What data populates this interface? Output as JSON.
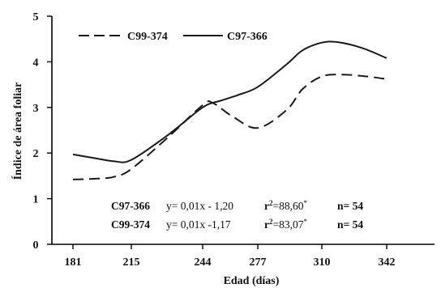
{
  "chart_data": {
    "type": "line",
    "x": [
      181,
      215,
      244,
      277,
      310,
      342
    ],
    "x_tick_labels": [
      "181",
      "215",
      "244",
      "277",
      "310",
      "342"
    ],
    "ylim": [
      0,
      5
    ],
    "y_ticks": [
      0,
      1,
      2,
      3,
      4,
      5
    ],
    "xlabel": "Edad (días)",
    "ylabel": "Índice de área foliar",
    "grid": false,
    "legend_position": "top-left",
    "series": [
      {
        "name": "C99-374",
        "style": "dashed",
        "color": "#1a1a1a",
        "points": [
          [
            181,
            1.42
          ],
          [
            195,
            1.44
          ],
          [
            205,
            1.48
          ],
          [
            215,
            1.65
          ],
          [
            230,
            2.35
          ],
          [
            244,
            3.05
          ],
          [
            250,
            3.1
          ],
          [
            262,
            2.8
          ],
          [
            277,
            2.55
          ],
          [
            292,
            2.95
          ],
          [
            300,
            3.4
          ],
          [
            310,
            3.68
          ],
          [
            320,
            3.72
          ],
          [
            332,
            3.68
          ],
          [
            342,
            3.62
          ]
        ]
      },
      {
        "name": "C97-366",
        "style": "solid",
        "color": "#1a1a1a",
        "points": [
          [
            181,
            1.97
          ],
          [
            195,
            1.88
          ],
          [
            205,
            1.82
          ],
          [
            215,
            1.85
          ],
          [
            230,
            2.4
          ],
          [
            244,
            3.0
          ],
          [
            255,
            3.15
          ],
          [
            265,
            3.27
          ],
          [
            277,
            3.45
          ],
          [
            292,
            3.95
          ],
          [
            300,
            4.25
          ],
          [
            310,
            4.42
          ],
          [
            318,
            4.43
          ],
          [
            330,
            4.3
          ],
          [
            342,
            4.08
          ]
        ]
      }
    ],
    "annotations": [
      {
        "label": "C97-366",
        "equation": "y= 0,01x - 1,20",
        "r2_prefix": "r",
        "r2_sup": "2",
        "r2_value": "=88,60",
        "r2_mark": "*",
        "n": "n= 54"
      },
      {
        "label": "C99-374",
        "equation": "y= 0,01x -1,17",
        "r2_prefix": "r",
        "r2_sup": "2",
        "r2_value": "=83,07",
        "r2_mark": "*",
        "n": "n= 54"
      }
    ]
  }
}
